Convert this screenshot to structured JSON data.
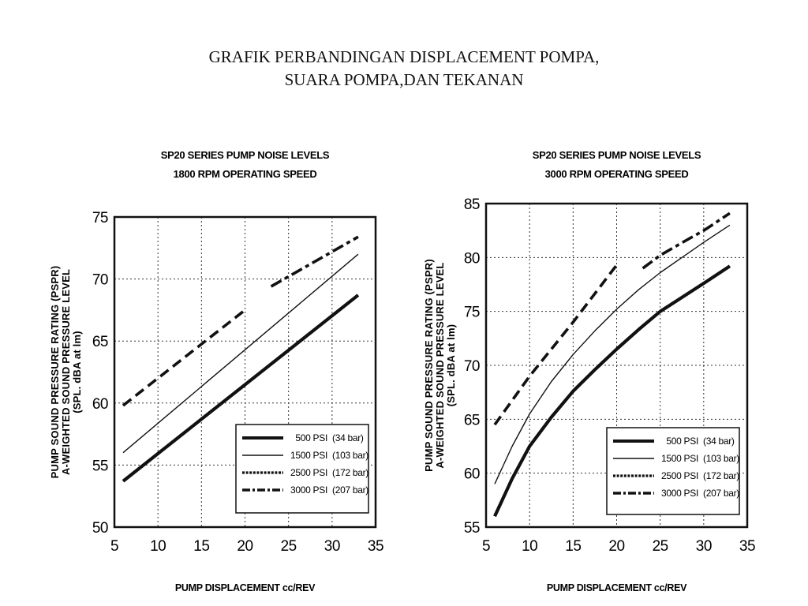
{
  "page": {
    "title_line1": "GRAFIK PERBANDINGAN DISPLACEMENT POMPA,",
    "title_line2": "SUARA POMPA,DAN TEKANAN"
  },
  "chart_data": [
    {
      "type": "line",
      "title_line1": "SP20 SERIES PUMP NOISE LEVELS",
      "title_line2": "1800 RPM OPERATING SPEED",
      "xlabel": "PUMP DISPLACEMENT cc/REV",
      "ylabel_line1": "PUMP SOUND PRESSURE RATING (PSPR)",
      "ylabel_line2": "A-WEIGHTED SOUND PRESSURE LEVEL",
      "ylabel_line3": "(SPL. dBA at lm)",
      "xlim": [
        5,
        35
      ],
      "ylim": [
        50,
        75
      ],
      "xticks": [
        "5",
        "10",
        "15",
        "20",
        "25",
        "30",
        "35"
      ],
      "yticks": [
        "50",
        "55",
        "60",
        "65",
        "70",
        "75"
      ],
      "grid": true,
      "legend_position": "bottom-right",
      "series": [
        {
          "name": "500 PSI",
          "unit": "(34 bar)",
          "style": "thick",
          "x": [
            6,
            33
          ],
          "y": [
            53.7,
            68.7
          ]
        },
        {
          "name": "1500 PSI",
          "unit": "(103 bar)",
          "style": "thin",
          "x": [
            6,
            33
          ],
          "y": [
            56.0,
            72.0
          ]
        },
        {
          "name": "2500 PSI",
          "unit": "(172 bar)",
          "style": "dashed",
          "x": [
            6,
            20
          ],
          "y": [
            59.8,
            67.5
          ]
        },
        {
          "name": "3000 PSI",
          "unit": "(207 bar)",
          "style": "dashdot",
          "x": [
            23,
            33
          ],
          "y": [
            69.4,
            73.4
          ]
        }
      ]
    },
    {
      "type": "line",
      "title_line1": "SP20 SERIES PUMP NOISE LEVELS",
      "title_line2": "3000 RPM OPERATING SPEED",
      "xlabel": "PUMP DISPLACEMENT cc/REV",
      "ylabel_line1": "PUMP SOUND PRESSURE RATING (PSPR)",
      "ylabel_line2": "A-WEIGHTED SOUND PRESSURE LEVEL",
      "ylabel_line3": "(SPL. dBA at lm)",
      "xlim": [
        5,
        35
      ],
      "ylim": [
        55,
        85
      ],
      "xticks": [
        "5",
        "10",
        "15",
        "20",
        "25",
        "30",
        "35"
      ],
      "yticks": [
        "55",
        "60",
        "65",
        "70",
        "75",
        "80",
        "85"
      ],
      "grid": true,
      "legend_position": "bottom-right",
      "series": [
        {
          "name": "500 PSI",
          "unit": "(34 bar)",
          "style": "thick",
          "x": [
            6,
            8,
            10,
            12.5,
            15,
            17.5,
            20,
            22.5,
            25,
            27.5,
            30,
            33
          ],
          "y": [
            56.0,
            59.5,
            62.5,
            65.2,
            67.6,
            69.6,
            71.5,
            73.3,
            75.0,
            76.3,
            77.6,
            79.2
          ]
        },
        {
          "name": "1500 PSI",
          "unit": "(103 bar)",
          "style": "thin",
          "x": [
            6,
            8,
            10,
            12.5,
            15,
            17.5,
            20,
            22.5,
            25,
            27.5,
            30,
            33
          ],
          "y": [
            59.0,
            62.5,
            65.5,
            68.5,
            71.0,
            73.2,
            75.2,
            77.0,
            78.6,
            80.0,
            81.4,
            83.0
          ]
        },
        {
          "name": "2500 PSI",
          "unit": "(172 bar)",
          "style": "dashed",
          "x": [
            6,
            10,
            15,
            20
          ],
          "y": [
            64.5,
            69.0,
            74.0,
            79.3
          ]
        },
        {
          "name": "3000 PSI",
          "unit": "(207 bar)",
          "style": "dashdot",
          "x": [
            23,
            25,
            28,
            30,
            33
          ],
          "y": [
            79.0,
            80.2,
            81.6,
            82.5,
            84.1
          ]
        }
      ]
    }
  ]
}
